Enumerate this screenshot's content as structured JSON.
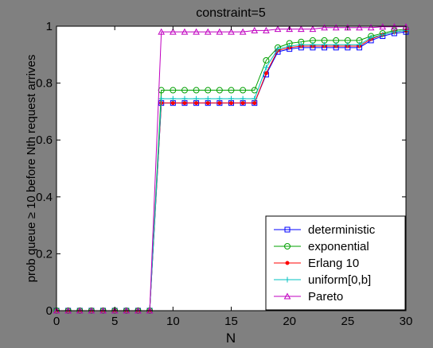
{
  "chart_data": {
    "type": "line",
    "title": "constraint=5",
    "xlabel": "N",
    "ylabel": "prob queue ≥ 10 before Nth request arrives",
    "xlim": [
      0,
      30
    ],
    "ylim": [
      0,
      1
    ],
    "xticks": [
      0,
      5,
      10,
      15,
      20,
      25,
      30
    ],
    "yticks": [
      0,
      0.2,
      0.4,
      0.6,
      0.8,
      1
    ],
    "grid": false,
    "legend_position": "bottom-right",
    "x": [
      0,
      1,
      2,
      3,
      4,
      5,
      6,
      7,
      8,
      9,
      10,
      11,
      12,
      13,
      14,
      15,
      16,
      17,
      18,
      19,
      20,
      21,
      22,
      23,
      24,
      25,
      26,
      27,
      28,
      29,
      30
    ],
    "series": [
      {
        "name": "deterministic",
        "color": "#0000ff",
        "marker": "square",
        "values": [
          0,
          0,
          0,
          0,
          0,
          0,
          0,
          0,
          0,
          0.73,
          0.73,
          0.73,
          0.73,
          0.73,
          0.73,
          0.73,
          0.73,
          0.73,
          0.83,
          0.91,
          0.92,
          0.925,
          0.925,
          0.925,
          0.925,
          0.925,
          0.925,
          0.95,
          0.965,
          0.975,
          0.98
        ]
      },
      {
        "name": "exponential",
        "color": "#00a000",
        "marker": "circle",
        "values": [
          0,
          0,
          0,
          0,
          0,
          0,
          0,
          0,
          0,
          0.775,
          0.775,
          0.775,
          0.775,
          0.775,
          0.775,
          0.775,
          0.775,
          0.775,
          0.88,
          0.925,
          0.94,
          0.945,
          0.95,
          0.95,
          0.95,
          0.95,
          0.95,
          0.965,
          0.975,
          0.985,
          0.99
        ]
      },
      {
        "name": "Erlang 10",
        "color": "#ff0000",
        "marker": "dot",
        "values": [
          0,
          0,
          0,
          0,
          0,
          0,
          0,
          0,
          0,
          0.73,
          0.73,
          0.73,
          0.73,
          0.73,
          0.73,
          0.73,
          0.73,
          0.73,
          0.835,
          0.915,
          0.925,
          0.93,
          0.93,
          0.93,
          0.93,
          0.93,
          0.93,
          0.955,
          0.97,
          0.98,
          0.985
        ]
      },
      {
        "name": "uniform[0,b]",
        "color": "#00c0c0",
        "marker": "plus",
        "values": [
          0,
          0,
          0,
          0,
          0,
          0,
          0,
          0,
          0,
          0.745,
          0.745,
          0.745,
          0.745,
          0.745,
          0.745,
          0.745,
          0.745,
          0.745,
          0.855,
          0.92,
          0.93,
          0.935,
          0.935,
          0.935,
          0.935,
          0.935,
          0.935,
          0.96,
          0.97,
          0.98,
          0.985
        ]
      },
      {
        "name": "Pareto",
        "color": "#c000c0",
        "marker": "triangle",
        "values": [
          0,
          0,
          0,
          0,
          0,
          0,
          0,
          0,
          0,
          0.98,
          0.98,
          0.98,
          0.98,
          0.98,
          0.98,
          0.98,
          0.98,
          0.985,
          0.985,
          0.99,
          0.99,
          0.99,
          0.99,
          0.995,
          0.995,
          0.995,
          0.995,
          0.995,
          0.998,
          0.998,
          0.998
        ]
      }
    ]
  }
}
